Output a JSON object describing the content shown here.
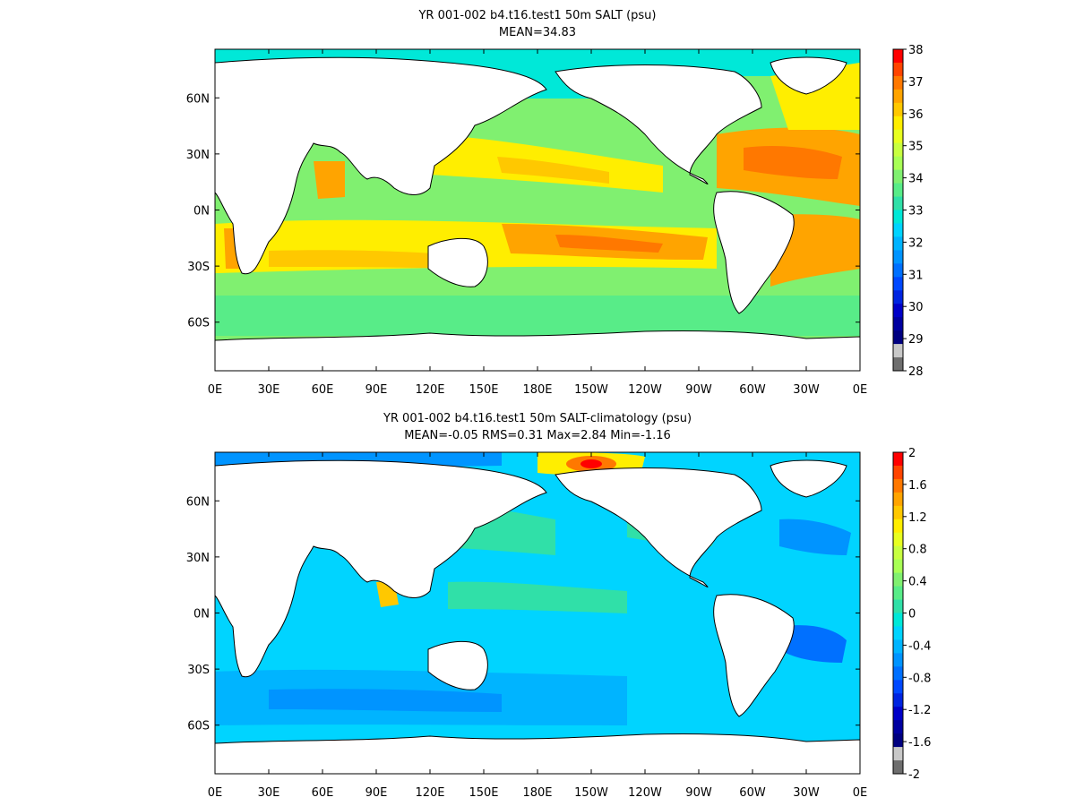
{
  "panels": [
    {
      "title": "YR 001-002 b4.t16.test1 50m SALT (psu)",
      "subtitle": "MEAN=34.83",
      "x_ticks": [
        "0E",
        "30E",
        "60E",
        "90E",
        "120E",
        "150E",
        "180E",
        "150W",
        "120W",
        "90W",
        "60W",
        "30W",
        "0E"
      ],
      "y_ticks": [
        "60N",
        "30N",
        "0N",
        "30S",
        "60S"
      ],
      "colorbar": {
        "labels": [
          "38",
          "37",
          "36",
          "35",
          "34",
          "33",
          "32",
          "31",
          "30",
          "29",
          "28"
        ],
        "colors": [
          "#ff0000",
          "#ff4400",
          "#ff7800",
          "#ffa400",
          "#ffc800",
          "#ffee00",
          "#e8ff20",
          "#c8ff40",
          "#a8ff55",
          "#80f070",
          "#58ec88",
          "#30e0a8",
          "#00e8d8",
          "#00d4ff",
          "#00b4ff",
          "#0094ff",
          "#0070ff",
          "#0048ff",
          "#0024e0",
          "#0000c8",
          "#0000a0",
          "#000080",
          "#c8c8c8",
          "#6e6e6e"
        ]
      }
    },
    {
      "title": "YR 001-002 b4.t16.test1 50m SALT-climatology (psu)",
      "subtitle": "MEAN=-0.05   RMS=0.31   Max=2.84   Min=-1.16",
      "x_ticks": [
        "0E",
        "30E",
        "60E",
        "90E",
        "120E",
        "150E",
        "180E",
        "150W",
        "120W",
        "90W",
        "60W",
        "30W",
        "0E"
      ],
      "y_ticks": [
        "60N",
        "30N",
        "0N",
        "30S",
        "60S"
      ],
      "colorbar": {
        "labels": [
          "2",
          "1.6",
          "1.2",
          "0.8",
          "0.4",
          "0",
          "-0.4",
          "-0.8",
          "-1.2",
          "-1.6",
          "-2"
        ],
        "colors": [
          "#ff0000",
          "#ff4400",
          "#ff7800",
          "#ffa400",
          "#ffc800",
          "#ffee00",
          "#e8ff20",
          "#c8ff40",
          "#a8ff55",
          "#80f070",
          "#58ec88",
          "#30e0a8",
          "#00e8d8",
          "#00d4ff",
          "#00b4ff",
          "#0094ff",
          "#0070ff",
          "#0048ff",
          "#0024e0",
          "#0000c8",
          "#0000a0",
          "#000080",
          "#c8c8c8",
          "#6e6e6e"
        ]
      }
    }
  ]
}
